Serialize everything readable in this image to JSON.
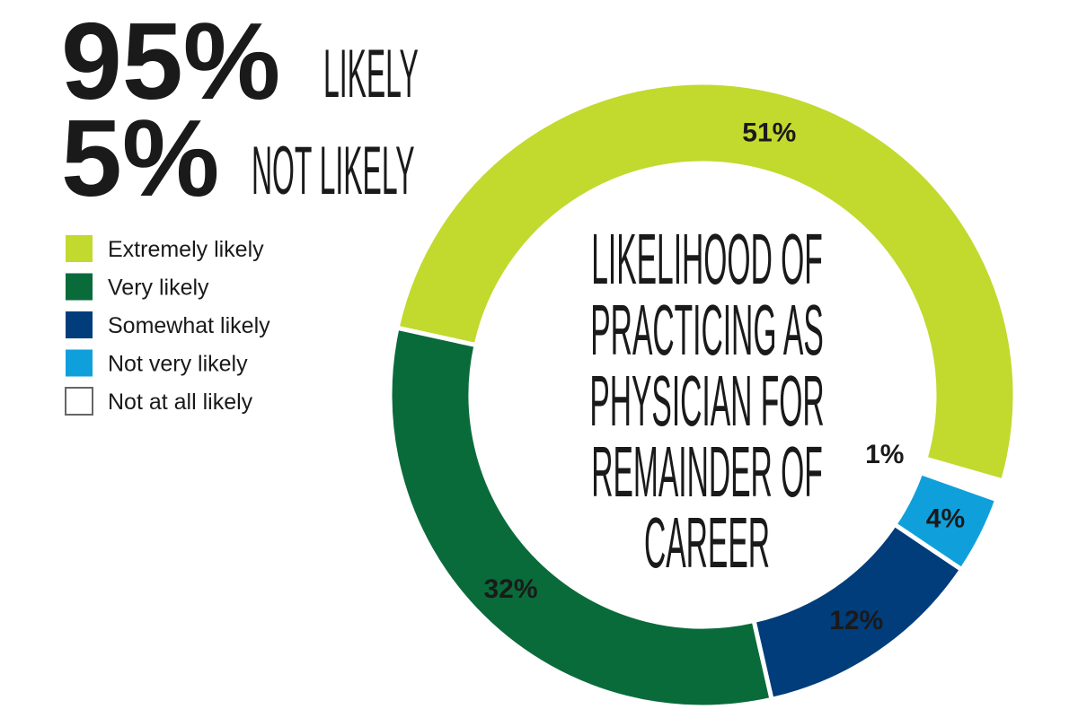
{
  "chart_data": {
    "type": "donut",
    "headlines": [
      {
        "figure": "95%",
        "text": "LIKELY"
      },
      {
        "figure": "5%",
        "text": "NOT LIKELY"
      }
    ],
    "title": [
      "LIKELIHOOD OF",
      "PRACTICING AS",
      "PHYSICIAN FOR",
      "REMAINDER OF",
      "CAREER"
    ],
    "categories": [
      "Extremely likely",
      "Very likely",
      "Somewhat likely",
      "Not very likely",
      "Not at all likely"
    ],
    "values": [
      51,
      32,
      12,
      4,
      1
    ],
    "value_labels": [
      "51%",
      "32%",
      "12%",
      "4%",
      "1%"
    ],
    "colors": [
      "#c2d92e",
      "#0a6b3a",
      "#003d7a",
      "#0fa0dc",
      "#ffffff"
    ],
    "legend": "top-left"
  }
}
